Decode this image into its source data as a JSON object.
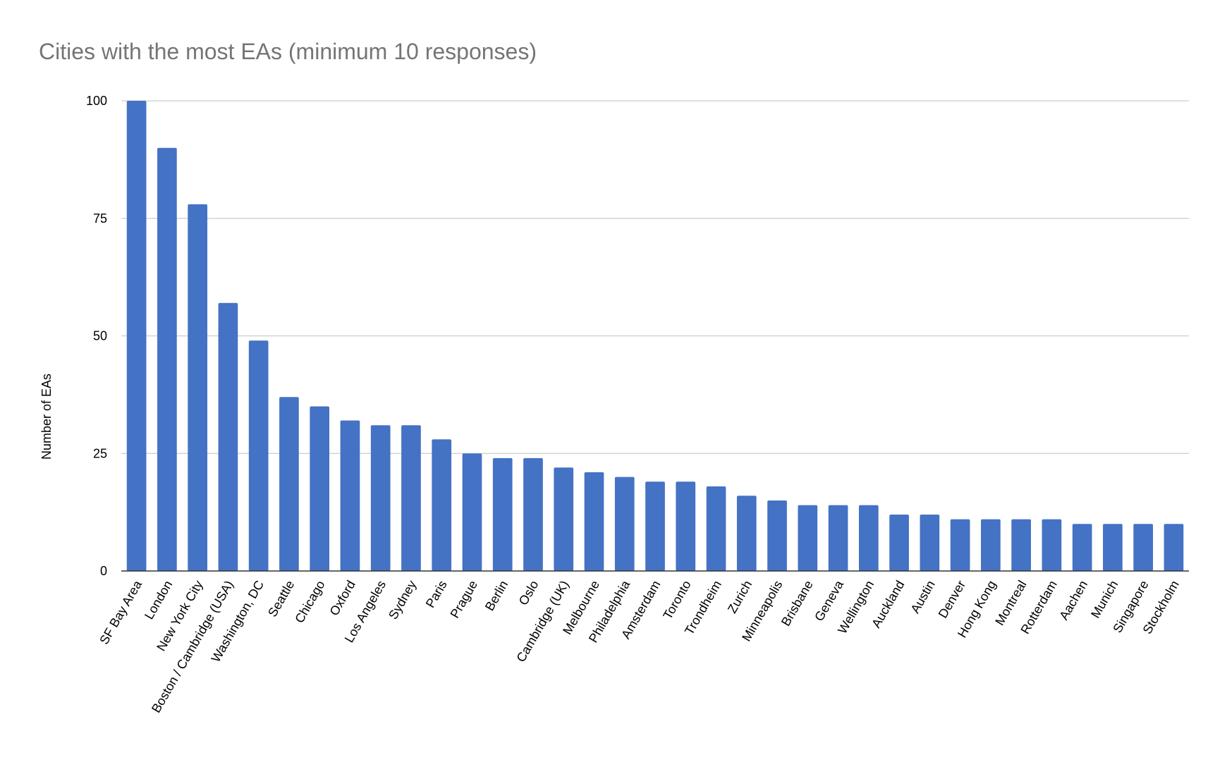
{
  "chart_data": {
    "type": "bar",
    "title": "Cities with the most EAs (minimum 10 responses)",
    "xlabel": "",
    "ylabel": "Number of EAs",
    "ylim": [
      0,
      100
    ],
    "yticks": [
      0,
      25,
      50,
      75,
      100
    ],
    "grid": true,
    "legend": "none",
    "bar_color": "#4472C4",
    "categories": [
      "SF Bay Area",
      "London",
      "New York City",
      "Boston / Cambridge (USA)",
      "Washington, DC",
      "Seattle",
      "Chicago",
      "Oxford",
      "Los Angeles",
      "Sydney",
      "Paris",
      "Prague",
      "Berlin",
      "Oslo",
      "Cambridge (UK)",
      "Melbourne",
      "Philadelphia",
      "Amsterdam",
      "Toronto",
      "Trondheim",
      "Zurich",
      "Minneapolis",
      "Brisbane",
      "Geneva",
      "Wellington",
      "Auckland",
      "Austin",
      "Denver",
      "Hong Kong",
      "Montreal",
      "Rotterdam",
      "Aachen",
      "Munich",
      "Singapore",
      "Stockholm"
    ],
    "values": [
      100,
      90,
      78,
      57,
      49,
      37,
      35,
      32,
      31,
      31,
      28,
      25,
      24,
      24,
      22,
      21,
      20,
      19,
      19,
      18,
      16,
      15,
      14,
      14,
      14,
      12,
      12,
      11,
      11,
      11,
      11,
      10,
      10,
      10,
      10
    ]
  }
}
